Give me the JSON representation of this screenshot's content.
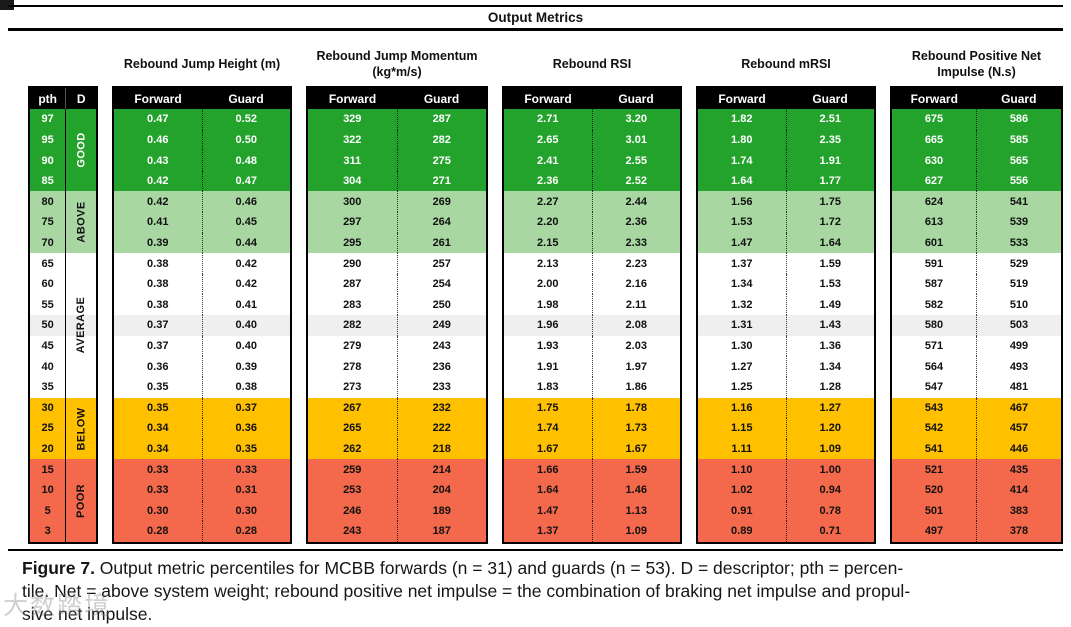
{
  "title": "Output Metrics",
  "table": {
    "columns": {
      "pth": "pth",
      "d": "D",
      "forward": "Forward",
      "guard": "Guard"
    },
    "metrics": [
      {
        "label": "Rebound Jump Height (m)"
      },
      {
        "label": "Rebound Jump Momentum (kg*m/s)"
      },
      {
        "label": "Rebound RSI"
      },
      {
        "label": "Rebound mRSI"
      },
      {
        "label": "Rebound Positive Net Impulse (N.s)"
      }
    ],
    "bands": [
      {
        "key": "good",
        "label": "GOOD",
        "rows": 4
      },
      {
        "key": "above",
        "label": "ABOVE",
        "rows": 3
      },
      {
        "key": "average",
        "label": "AVERAGE",
        "rows": 7
      },
      {
        "key": "below",
        "label": "BELOW",
        "rows": 3
      },
      {
        "key": "poor",
        "label": "POOR",
        "rows": 4
      }
    ],
    "rows": [
      {
        "pth": "97",
        "band": "good",
        "values": [
          [
            "0.47",
            "0.52"
          ],
          [
            "329",
            "287"
          ],
          [
            "2.71",
            "3.20"
          ],
          [
            "1.82",
            "2.51"
          ],
          [
            "675",
            "586"
          ]
        ]
      },
      {
        "pth": "95",
        "band": "good",
        "values": [
          [
            "0.46",
            "0.50"
          ],
          [
            "322",
            "282"
          ],
          [
            "2.65",
            "3.01"
          ],
          [
            "1.80",
            "2.35"
          ],
          [
            "665",
            "585"
          ]
        ]
      },
      {
        "pth": "90",
        "band": "good",
        "values": [
          [
            "0.43",
            "0.48"
          ],
          [
            "311",
            "275"
          ],
          [
            "2.41",
            "2.55"
          ],
          [
            "1.74",
            "1.91"
          ],
          [
            "630",
            "565"
          ]
        ]
      },
      {
        "pth": "85",
        "band": "good",
        "values": [
          [
            "0.42",
            "0.47"
          ],
          [
            "304",
            "271"
          ],
          [
            "2.36",
            "2.52"
          ],
          [
            "1.64",
            "1.77"
          ],
          [
            "627",
            "556"
          ]
        ]
      },
      {
        "pth": "80",
        "band": "above",
        "values": [
          [
            "0.42",
            "0.46"
          ],
          [
            "300",
            "269"
          ],
          [
            "2.27",
            "2.44"
          ],
          [
            "1.56",
            "1.75"
          ],
          [
            "624",
            "541"
          ]
        ]
      },
      {
        "pth": "75",
        "band": "above",
        "values": [
          [
            "0.41",
            "0.45"
          ],
          [
            "297",
            "264"
          ],
          [
            "2.20",
            "2.36"
          ],
          [
            "1.53",
            "1.72"
          ],
          [
            "613",
            "539"
          ]
        ]
      },
      {
        "pth": "70",
        "band": "above",
        "values": [
          [
            "0.39",
            "0.44"
          ],
          [
            "295",
            "261"
          ],
          [
            "2.15",
            "2.33"
          ],
          [
            "1.47",
            "1.64"
          ],
          [
            "601",
            "533"
          ]
        ]
      },
      {
        "pth": "65",
        "band": "average",
        "values": [
          [
            "0.38",
            "0.42"
          ],
          [
            "290",
            "257"
          ],
          [
            "2.13",
            "2.23"
          ],
          [
            "1.37",
            "1.59"
          ],
          [
            "591",
            "529"
          ]
        ]
      },
      {
        "pth": "60",
        "band": "average",
        "values": [
          [
            "0.38",
            "0.42"
          ],
          [
            "287",
            "254"
          ],
          [
            "2.00",
            "2.16"
          ],
          [
            "1.34",
            "1.53"
          ],
          [
            "587",
            "519"
          ]
        ]
      },
      {
        "pth": "55",
        "band": "average",
        "values": [
          [
            "0.38",
            "0.41"
          ],
          [
            "283",
            "250"
          ],
          [
            "1.98",
            "2.11"
          ],
          [
            "1.32",
            "1.49"
          ],
          [
            "582",
            "510"
          ]
        ]
      },
      {
        "pth": "50",
        "band": "average",
        "shade": true,
        "values": [
          [
            "0.37",
            "0.40"
          ],
          [
            "282",
            "249"
          ],
          [
            "1.96",
            "2.08"
          ],
          [
            "1.31",
            "1.43"
          ],
          [
            "580",
            "503"
          ]
        ]
      },
      {
        "pth": "45",
        "band": "average",
        "values": [
          [
            "0.37",
            "0.40"
          ],
          [
            "279",
            "243"
          ],
          [
            "1.93",
            "2.03"
          ],
          [
            "1.30",
            "1.36"
          ],
          [
            "571",
            "499"
          ]
        ]
      },
      {
        "pth": "40",
        "band": "average",
        "values": [
          [
            "0.36",
            "0.39"
          ],
          [
            "278",
            "236"
          ],
          [
            "1.91",
            "1.97"
          ],
          [
            "1.27",
            "1.34"
          ],
          [
            "564",
            "493"
          ]
        ]
      },
      {
        "pth": "35",
        "band": "average",
        "values": [
          [
            "0.35",
            "0.38"
          ],
          [
            "273",
            "233"
          ],
          [
            "1.83",
            "1.86"
          ],
          [
            "1.25",
            "1.28"
          ],
          [
            "547",
            "481"
          ]
        ]
      },
      {
        "pth": "30",
        "band": "below",
        "values": [
          [
            "0.35",
            "0.37"
          ],
          [
            "267",
            "232"
          ],
          [
            "1.75",
            "1.78"
          ],
          [
            "1.16",
            "1.27"
          ],
          [
            "543",
            "467"
          ]
        ]
      },
      {
        "pth": "25",
        "band": "below",
        "values": [
          [
            "0.34",
            "0.36"
          ],
          [
            "265",
            "222"
          ],
          [
            "1.74",
            "1.73"
          ],
          [
            "1.15",
            "1.20"
          ],
          [
            "542",
            "457"
          ]
        ]
      },
      {
        "pth": "20",
        "band": "below",
        "values": [
          [
            "0.34",
            "0.35"
          ],
          [
            "262",
            "218"
          ],
          [
            "1.67",
            "1.67"
          ],
          [
            "1.11",
            "1.09"
          ],
          [
            "541",
            "446"
          ]
        ]
      },
      {
        "pth": "15",
        "band": "poor",
        "values": [
          [
            "0.33",
            "0.33"
          ],
          [
            "259",
            "214"
          ],
          [
            "1.66",
            "1.59"
          ],
          [
            "1.10",
            "1.00"
          ],
          [
            "521",
            "435"
          ]
        ]
      },
      {
        "pth": "10",
        "band": "poor",
        "values": [
          [
            "0.33",
            "0.31"
          ],
          [
            "253",
            "204"
          ],
          [
            "1.64",
            "1.46"
          ],
          [
            "1.02",
            "0.94"
          ],
          [
            "520",
            "414"
          ]
        ]
      },
      {
        "pth": "5",
        "band": "poor",
        "values": [
          [
            "0.30",
            "0.30"
          ],
          [
            "246",
            "189"
          ],
          [
            "1.47",
            "1.13"
          ],
          [
            "0.91",
            "0.78"
          ],
          [
            "501",
            "383"
          ]
        ]
      },
      {
        "pth": "3",
        "band": "poor",
        "values": [
          [
            "0.28",
            "0.28"
          ],
          [
            "243",
            "187"
          ],
          [
            "1.37",
            "1.09"
          ],
          [
            "0.89",
            "0.71"
          ],
          [
            "497",
            "378"
          ]
        ]
      }
    ]
  },
  "caption": {
    "label": "Figure 7.",
    "line1": " Output metric percentiles for MCBB forwards (n = 31) and guards (n = 53). D = descriptor; pth = percen-",
    "line2": "tile. Net = above system weight; rebound positive net impulse = the combination of braking net impulse and propul-",
    "line3": "sive net impulse."
  },
  "watermark": "大数踏境",
  "colors": {
    "good": "#23A32C",
    "above": "#A8D7A2",
    "average": "#FFFFFF",
    "average_shade": "#EFEFEF",
    "below": "#FFC000",
    "poor": "#F4694B",
    "header": "#000000"
  }
}
